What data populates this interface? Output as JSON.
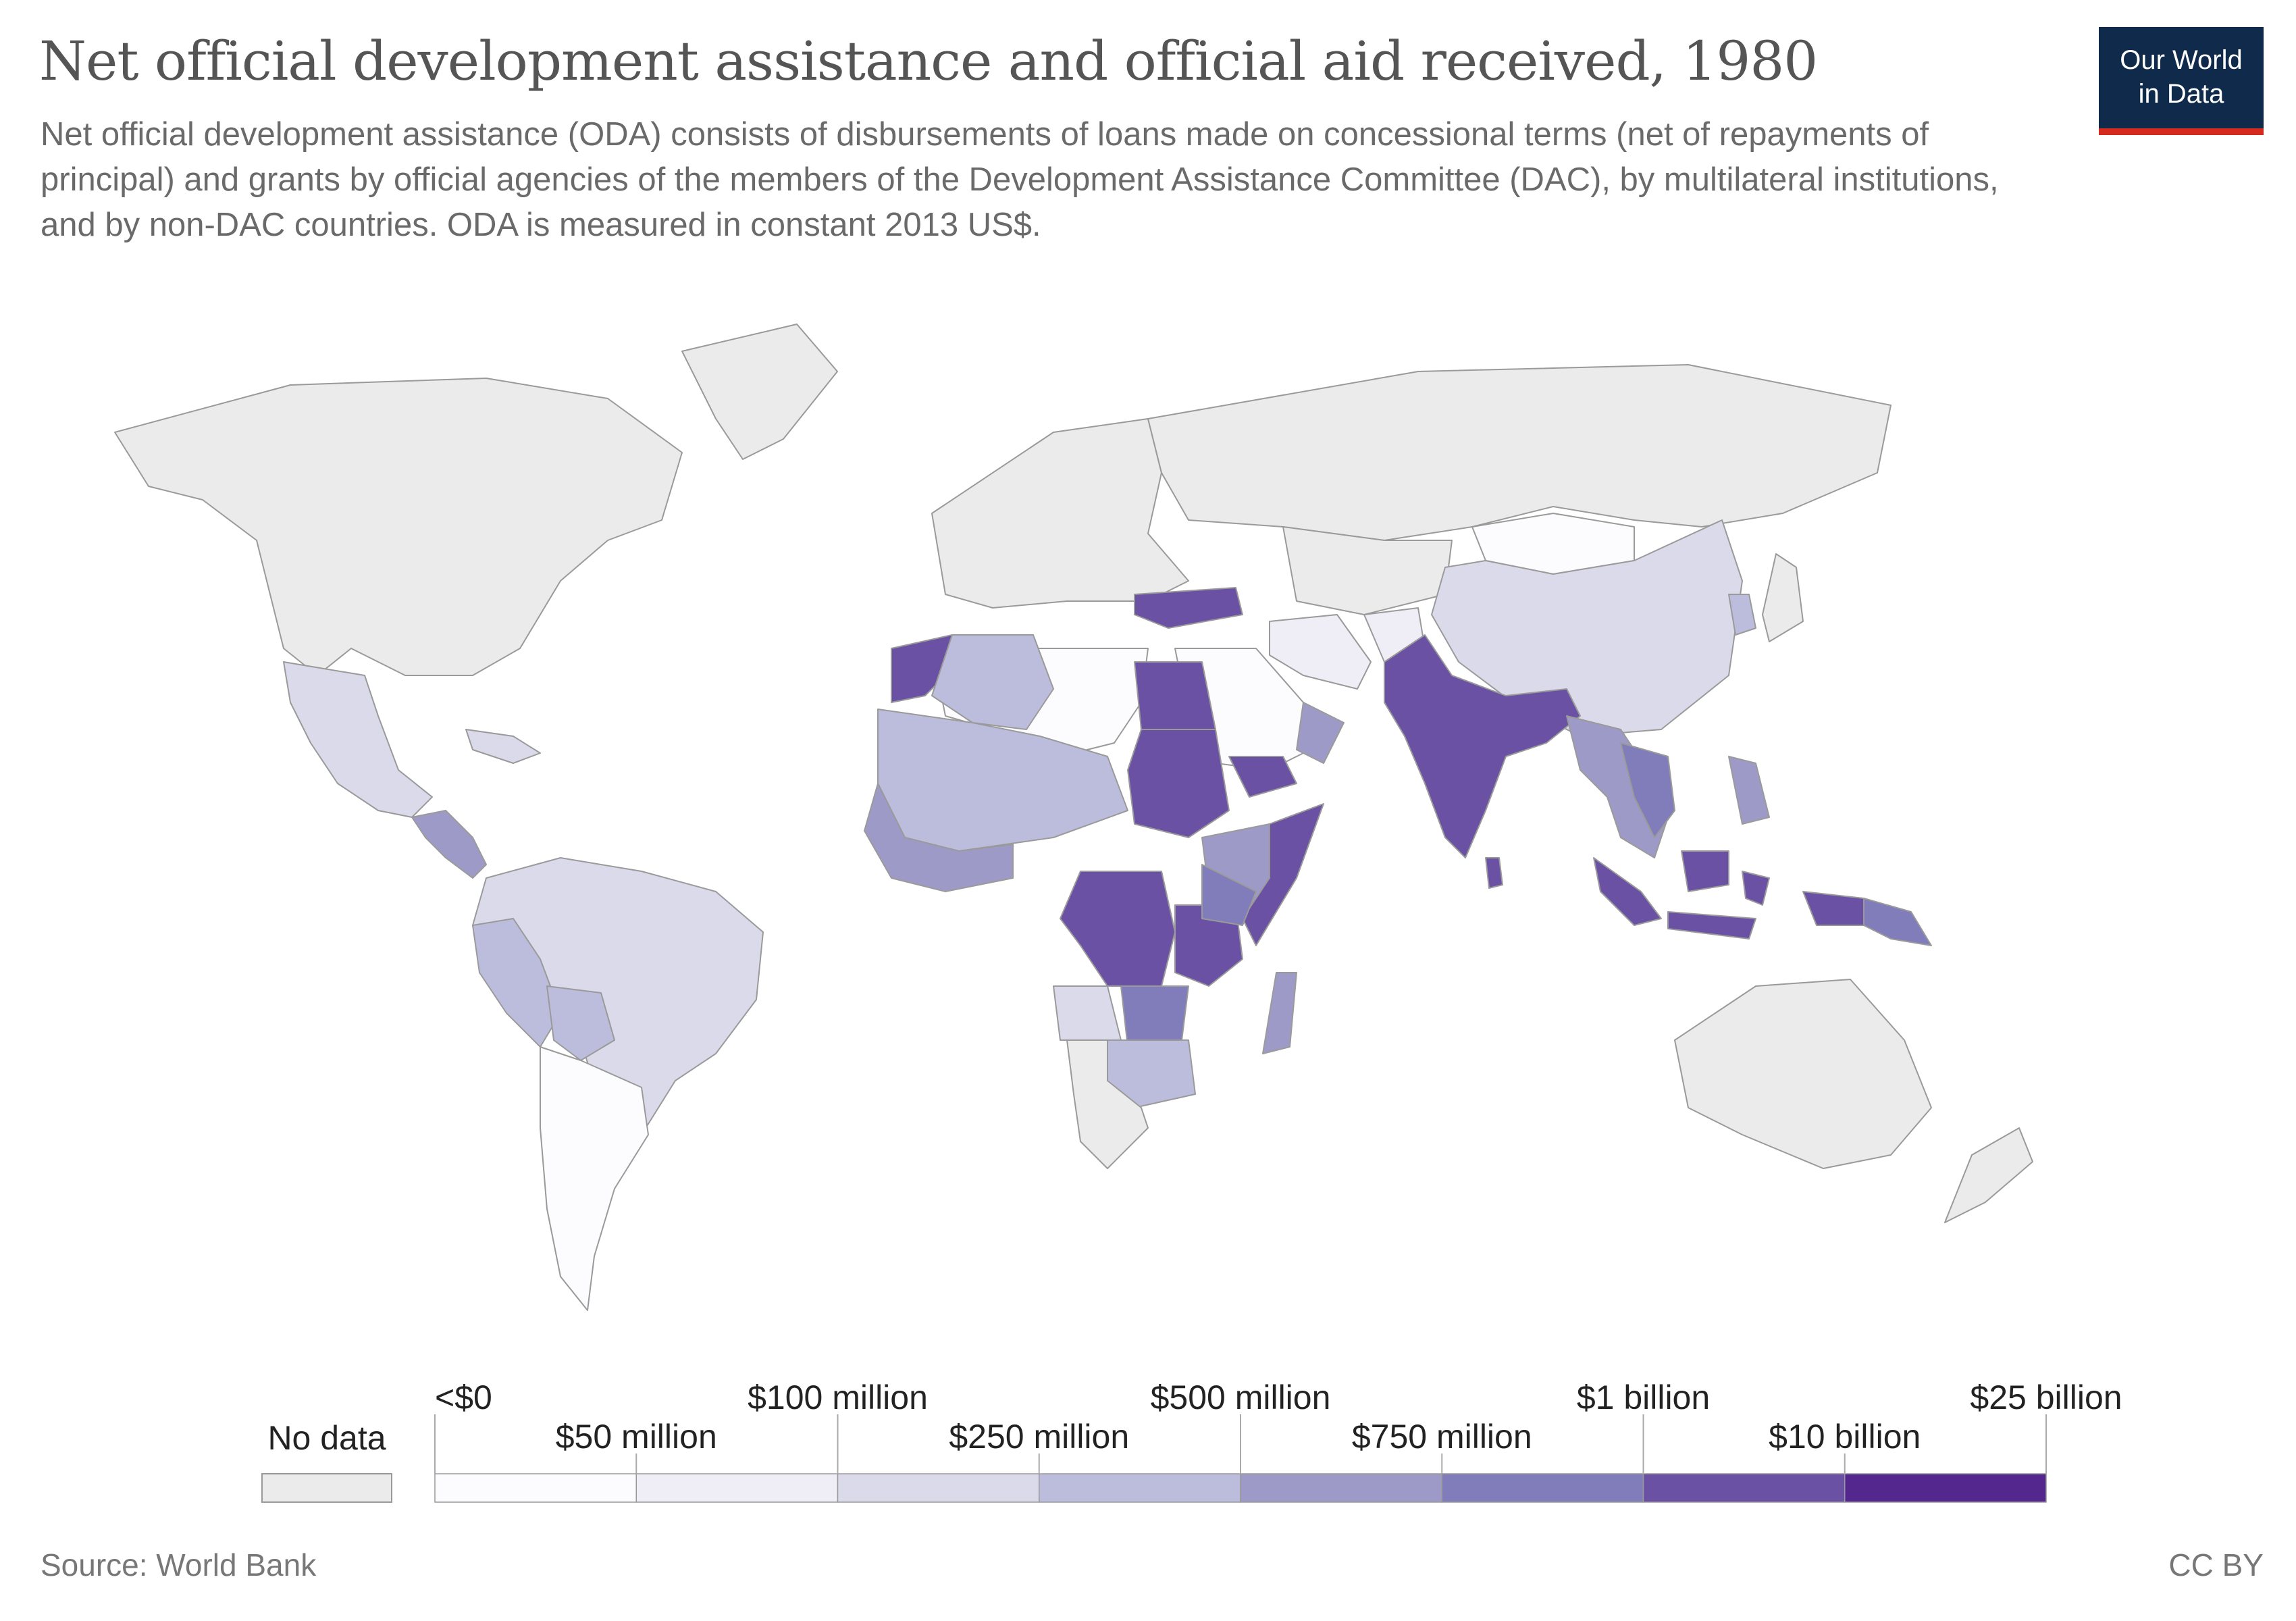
{
  "title": "Net official development assistance and official aid received, 1980",
  "subtitle": "Net official development assistance (ODA) consists of disbursements of loans made on concessional terms (net of repayments of principal) and grants by official agencies of the members of the Development Assistance Committee (DAC), by multilateral institutions, and by non-DAC countries. ODA is measured in constant 2013 US$.",
  "logo": {
    "line1": "Our World",
    "line2": "in Data"
  },
  "colors": {
    "no_data": "#ebebeb",
    "border": "#9a9a9a",
    "scale": [
      "#fcfbfd",
      "#efedf5",
      "#dadaeb",
      "#bcbddc",
      "#9e9ac8",
      "#807dba",
      "#6a51a3",
      "#54278f"
    ]
  },
  "legend": {
    "no_data_label": "No data",
    "bins": [
      {
        "label": "<$0"
      },
      {
        "label": "$50 million"
      },
      {
        "label": "$100 million"
      },
      {
        "label": "$250 million"
      },
      {
        "label": "$500 million"
      },
      {
        "label": "$750 million"
      },
      {
        "label": "$1 billion"
      },
      {
        "label": "$10 billion"
      },
      {
        "label": "$25 billion"
      }
    ]
  },
  "footer": {
    "source": "Source: World Bank",
    "license": "CC BY"
  }
}
